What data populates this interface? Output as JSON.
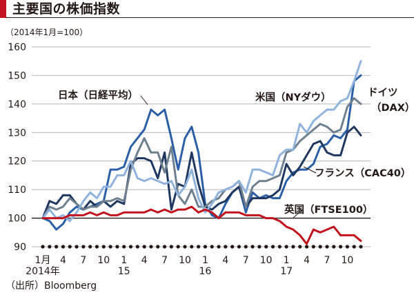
{
  "header": {
    "title": "主要国の株価指数"
  },
  "chart_data": {
    "type": "line",
    "title": "主要国の株価指数",
    "unit_note": "（2014年1月=100）",
    "source": "（出所）Bloomberg",
    "xlabel": "",
    "ylabel": "",
    "ylim": [
      90,
      160
    ],
    "yticks": [
      90,
      100,
      110,
      120,
      130,
      140,
      150,
      160
    ],
    "grid": "horizontal",
    "baseline": 100,
    "x_ticks": [
      {
        "x": 1,
        "label": "1月",
        "year_label": "2014年"
      },
      {
        "x": 4,
        "label": "4"
      },
      {
        "x": 7,
        "label": "7"
      },
      {
        "x": 10,
        "label": "10"
      },
      {
        "x": 13,
        "label": "1",
        "year_label": "15"
      },
      {
        "x": 16,
        "label": "4"
      },
      {
        "x": 19,
        "label": "7"
      },
      {
        "x": 22,
        "label": "10"
      },
      {
        "x": 25,
        "label": "1",
        "year_label": "16"
      },
      {
        "x": 28,
        "label": "4"
      },
      {
        "x": 31,
        "label": "7"
      },
      {
        "x": 34,
        "label": "10"
      },
      {
        "x": 37,
        "label": "1",
        "year_label": "17"
      },
      {
        "x": 40,
        "label": "4"
      },
      {
        "x": 43,
        "label": "7"
      },
      {
        "x": 46,
        "label": "10"
      }
    ],
    "xlim": [
      1,
      48
    ],
    "x": [
      1,
      2,
      3,
      4,
      5,
      6,
      7,
      8,
      9,
      10,
      11,
      12,
      13,
      14,
      15,
      16,
      17,
      18,
      19,
      20,
      21,
      22,
      23,
      24,
      25,
      26,
      27,
      28,
      29,
      30,
      31,
      32,
      33,
      34,
      35,
      36,
      37,
      38,
      39,
      40,
      41,
      42,
      43,
      44,
      45,
      46,
      47,
      48
    ],
    "series": [
      {
        "name": "日本（日経平均）",
        "color": "#2a5fa8",
        "width": 3,
        "values": [
          100,
          99,
          96,
          98,
          102,
          104,
          103,
          104,
          105,
          106,
          117,
          117,
          118,
          125,
          128,
          131,
          138,
          136,
          138,
          128,
          117,
          128,
          132,
          123,
          105,
          101,
          100,
          105,
          109,
          111,
          102,
          109,
          107,
          108,
          107,
          107,
          113,
          116,
          117,
          117,
          119,
          125,
          126,
          129,
          128,
          131,
          148,
          150
        ]
      },
      {
        "name": "フランス（CAC40）",
        "color": "#1f3760",
        "width": 3,
        "values": [
          100,
          106,
          105,
          108,
          108,
          105,
          103,
          106,
          104,
          106,
          104,
          106,
          105,
          119,
          121,
          121,
          120,
          114,
          123,
          103,
          112,
          111,
          123,
          112,
          104,
          103,
          105,
          106,
          109,
          111,
          104,
          107,
          107,
          107,
          108,
          110,
          119,
          115,
          118,
          122,
          126,
          127,
          123,
          122,
          122,
          130,
          132,
          129
        ]
      },
      {
        "name": "米国（NYダウ）",
        "color": "#6e7f8f",
        "width": 3,
        "values": [
          100,
          104,
          103,
          104,
          107,
          105,
          103,
          104,
          104,
          106,
          106,
          107,
          106,
          117,
          123,
          128,
          123,
          123,
          116,
          125,
          108,
          105,
          110,
          104,
          104,
          106,
          107,
          110,
          111,
          113,
          104,
          111,
          113,
          113,
          114,
          115,
          123,
          124,
          127,
          129,
          131,
          133,
          132,
          130,
          131,
          139,
          142,
          140
        ]
      },
      {
        "name": "ドイツ（DAX）",
        "color": "#8fb3dc",
        "width": 3,
        "values": [
          100,
          103,
          100,
          101,
          99,
          102,
          106,
          109,
          107,
          111,
          111,
          115,
          115,
          120,
          114,
          113,
          114,
          113,
          112,
          113,
          108,
          111,
          117,
          107,
          102,
          105,
          109,
          110,
          111,
          113,
          109,
          117,
          117,
          116,
          115,
          122,
          124,
          124,
          133,
          130,
          134,
          136,
          138,
          138,
          141,
          142,
          148,
          155
        ]
      },
      {
        "name": "英国（FTSE100）",
        "color": "#c4121c",
        "width": 3,
        "values": [
          100,
          100,
          100,
          100,
          101,
          101,
          101,
          102,
          101,
          102,
          101,
          101,
          102,
          102,
          102,
          102,
          103,
          102,
          103,
          102,
          103,
          103,
          104,
          102,
          103,
          102,
          100,
          102,
          102,
          102,
          101,
          101,
          101,
          100,
          100,
          99,
          97,
          96,
          94,
          91,
          96,
          95,
          96,
          97,
          94,
          94,
          94,
          92
        ]
      }
    ],
    "labels": [
      {
        "text": "日本（日経平均）",
        "series": 0
      },
      {
        "text": "米国（NYダウ）",
        "series": 2
      },
      {
        "text": "ドイツ",
        "series": 3
      },
      {
        "text": "（DAX）",
        "series": 3
      },
      {
        "text": "フランス（CAC40）",
        "series": 1
      },
      {
        "text": "英国（FTSE100）",
        "series": 4
      }
    ]
  }
}
